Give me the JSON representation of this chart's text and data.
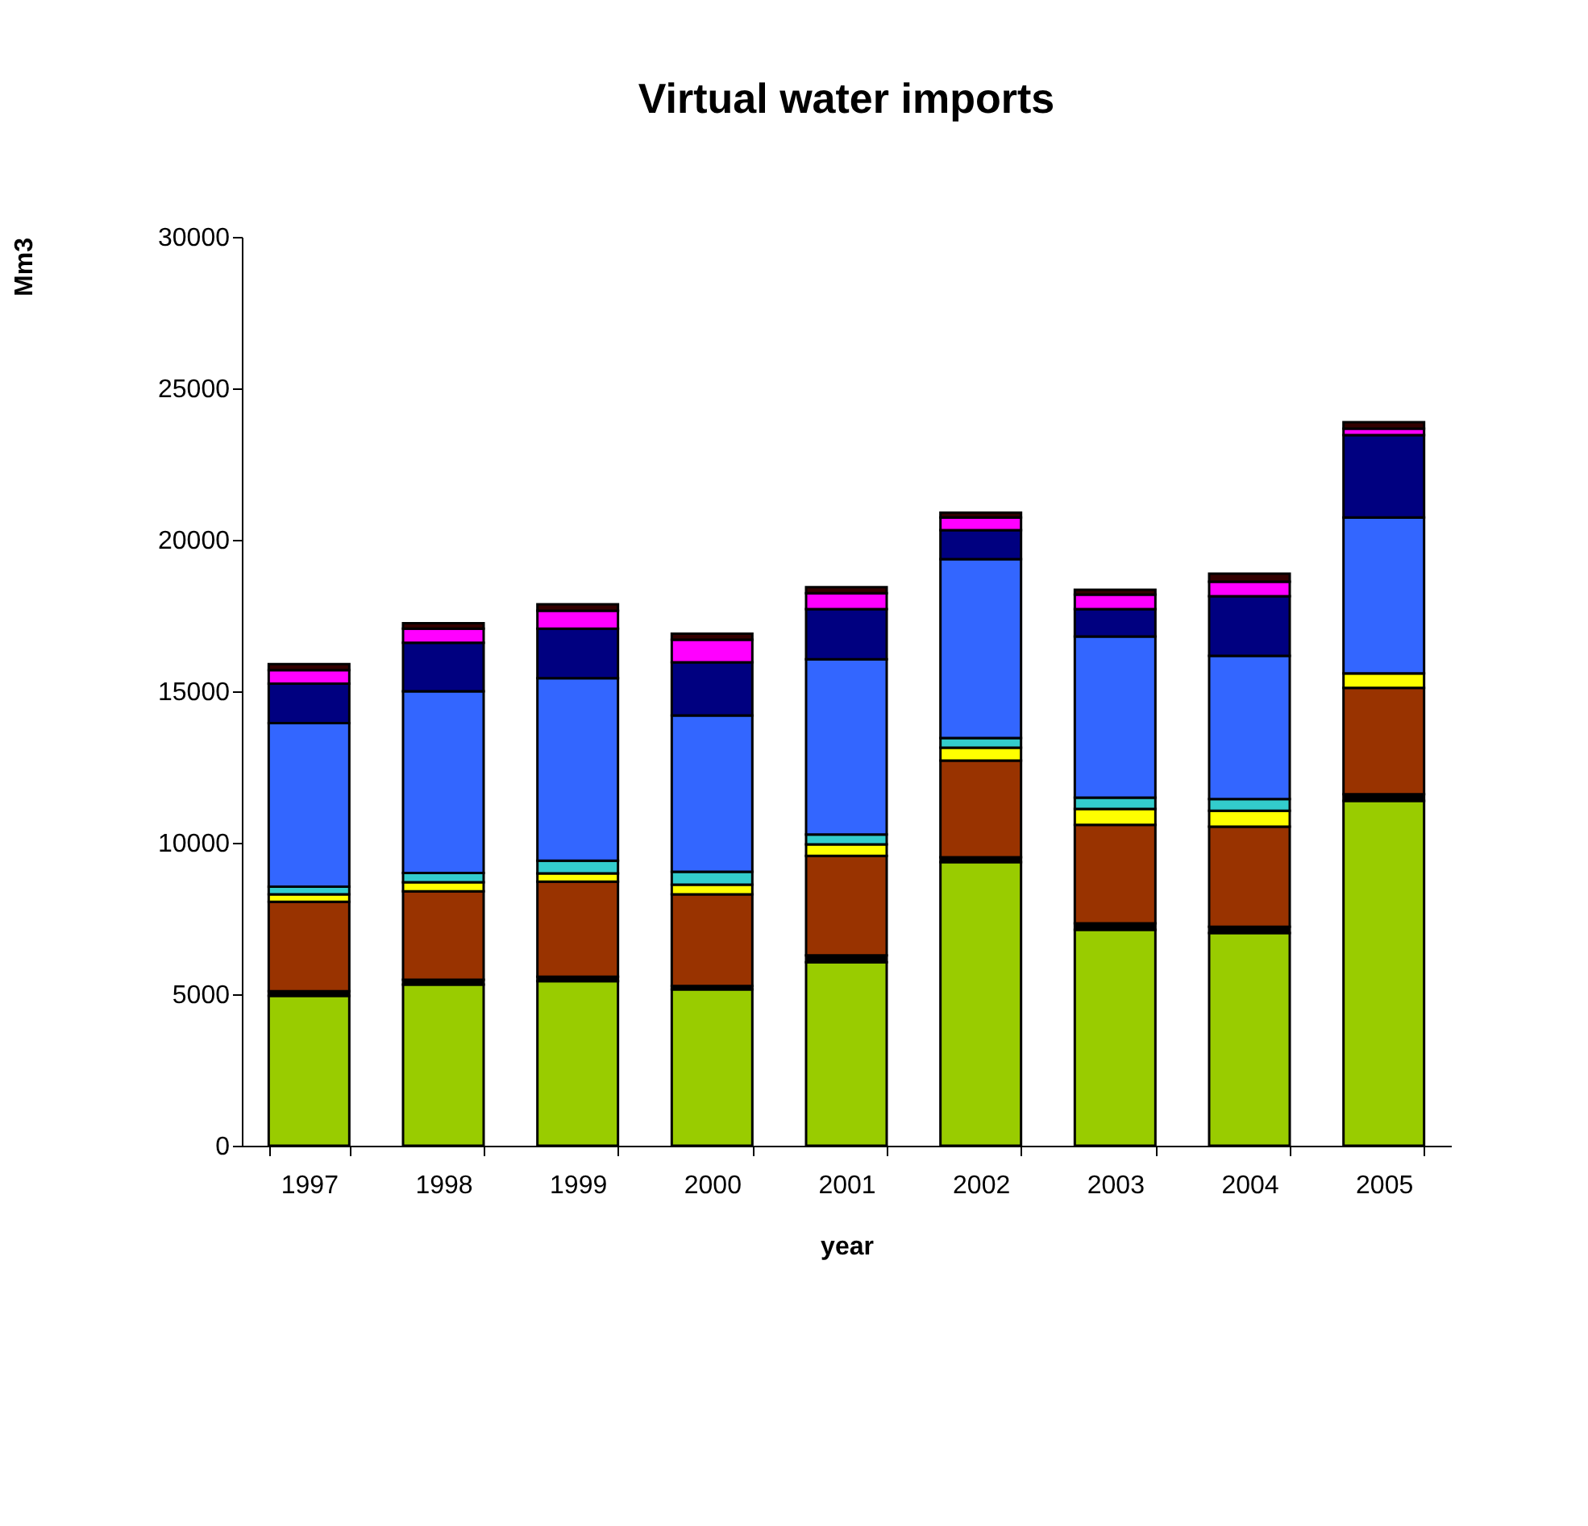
{
  "chart_data": {
    "type": "bar",
    "title": "Virtual water imports",
    "xlabel": "year",
    "ylabel": "Mm3",
    "stacked": true,
    "categories": [
      "1997",
      "1998",
      "1999",
      "2000",
      "2001",
      "2002",
      "2003",
      "2004",
      "2005"
    ],
    "series": [
      {
        "color": "#99cc00",
        "values": [
          4950,
          5320,
          5430,
          5160,
          6060,
          9360,
          7130,
          7020,
          11380
        ]
      },
      {
        "color": "#000000",
        "values": [
          150,
          160,
          150,
          110,
          220,
          160,
          210,
          210,
          220
        ]
      },
      {
        "color": "#993300",
        "values": [
          2950,
          2920,
          3140,
          3030,
          3290,
          3190,
          3250,
          3300,
          3510
        ]
      },
      {
        "color": "#ffff00",
        "values": [
          250,
          300,
          270,
          320,
          380,
          430,
          530,
          530,
          480
        ]
      },
      {
        "color": "#33cccc",
        "values": [
          250,
          300,
          420,
          420,
          320,
          320,
          370,
          380,
          0
        ]
      },
      {
        "color": "#3366ff",
        "values": [
          5400,
          6000,
          6020,
          5160,
          5790,
          5900,
          5320,
          4730,
          5150
        ]
      },
      {
        "color": "#000080",
        "values": [
          1300,
          1600,
          1640,
          1760,
          1650,
          960,
          900,
          1970,
          2720
        ]
      },
      {
        "color": "#ff00ff",
        "values": [
          450,
          470,
          590,
          740,
          530,
          420,
          480,
          480,
          210
        ]
      },
      {
        "color": "#330000",
        "values": [
          200,
          180,
          210,
          200,
          200,
          160,
          160,
          260,
          210
        ]
      }
    ],
    "ylim": [
      0,
      30000
    ],
    "yticks": [
      0,
      5000,
      10000,
      15000,
      20000,
      25000,
      30000
    ],
    "grid": false,
    "legend": false
  }
}
